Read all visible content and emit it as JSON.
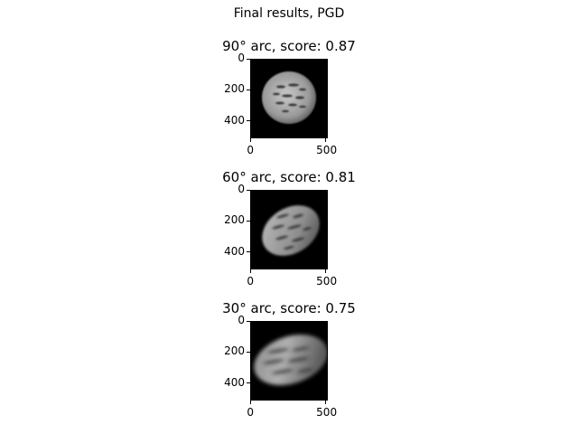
{
  "figure": {
    "suptitle": "Final results, PGD"
  },
  "chart_data": [
    {
      "type": "heatmap",
      "title": "90° arc, score: 0.87",
      "arc_degrees": 90,
      "score": 0.87,
      "xticks": [
        "0",
        "500"
      ],
      "yticks": [
        "0",
        "200",
        "400"
      ],
      "xlim": [
        0,
        512
      ],
      "ylim": [
        512,
        0
      ],
      "colormap": "gray",
      "content": "reconstructed circular object with dark streak features"
    },
    {
      "type": "heatmap",
      "title": "60° arc, score: 0.81",
      "arc_degrees": 60,
      "score": 0.81,
      "xticks": [
        "0",
        "500"
      ],
      "yticks": [
        "0",
        "200",
        "400"
      ],
      "xlim": [
        0,
        512
      ],
      "ylim": [
        512,
        0
      ],
      "colormap": "gray",
      "content": "reconstructed object, slanted and stretched, with dark streaks"
    },
    {
      "type": "heatmap",
      "title": "30° arc, score: 0.75",
      "arc_degrees": 30,
      "score": 0.75,
      "xticks": [
        "0",
        "500"
      ],
      "yticks": [
        "0",
        "200",
        "400"
      ],
      "xlim": [
        0,
        512
      ],
      "ylim": [
        512,
        0
      ],
      "colormap": "gray",
      "content": "reconstructed object, strongly smeared horizontally, with dark streaks"
    }
  ]
}
